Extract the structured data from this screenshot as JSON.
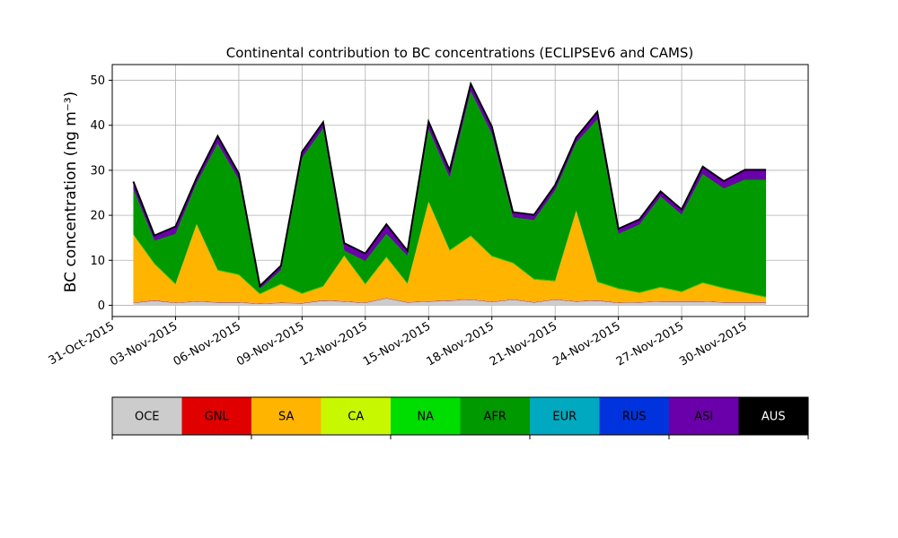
{
  "chart_data": {
    "type": "area",
    "stacked": true,
    "title": "Continental contribution to BC concentrations (ECLIPSEv6 and CAMS)",
    "ylabel": "BC concentration (ng m⁻³)",
    "xlabel": "",
    "x_scale": "time",
    "x_range": [
      "2015-10-31",
      "2015-12-03"
    ],
    "ylim": [
      -2.5,
      53.5
    ],
    "grid": true,
    "x_tick_labels": [
      "31-Oct-2015",
      "03-Nov-2015",
      "06-Nov-2015",
      "09-Nov-2015",
      "12-Nov-2015",
      "15-Nov-2015",
      "18-Nov-2015",
      "21-Nov-2015",
      "24-Nov-2015",
      "27-Nov-2015",
      "30-Nov-2015"
    ],
    "y_tick_labels": [
      "0",
      "10",
      "20",
      "30",
      "40",
      "50"
    ],
    "y_ticks": [
      0,
      10,
      20,
      30,
      40,
      50
    ],
    "x": [
      "2015-11-01",
      "2015-11-02",
      "2015-11-03",
      "2015-11-04",
      "2015-11-05",
      "2015-11-06",
      "2015-11-07",
      "2015-11-08",
      "2015-11-09",
      "2015-11-10",
      "2015-11-11",
      "2015-11-12",
      "2015-11-13",
      "2015-11-14",
      "2015-11-15",
      "2015-11-16",
      "2015-11-17",
      "2015-11-18",
      "2015-11-19",
      "2015-11-20",
      "2015-11-21",
      "2015-11-22",
      "2015-11-23",
      "2015-11-24",
      "2015-11-25",
      "2015-11-26",
      "2015-11-27",
      "2015-11-28",
      "2015-11-29",
      "2015-11-30",
      "2015-12-01"
    ],
    "series": [
      {
        "name": "OCE",
        "color": "#cccccc",
        "values": [
          0.5,
          1.0,
          0.5,
          0.8,
          0.6,
          0.6,
          0.3,
          0.5,
          0.4,
          1.0,
          0.8,
          0.5,
          1.5,
          0.6,
          0.8,
          1.0,
          1.2,
          0.7,
          1.2,
          0.6,
          1.2,
          0.8,
          1.0,
          0.5,
          0.6,
          0.8,
          0.8,
          0.8,
          0.6,
          0.6,
          0.6
        ]
      },
      {
        "name": "GNL",
        "color": "#e00000",
        "values": [
          0.1,
          0.1,
          0.1,
          0.1,
          0.1,
          0.1,
          0.1,
          0.1,
          0.1,
          0.1,
          0.1,
          0.1,
          0.1,
          0.1,
          0.1,
          0.1,
          0.1,
          0.1,
          0.1,
          0.1,
          0.1,
          0.1,
          0.1,
          0.1,
          0.1,
          0.1,
          0.1,
          0.1,
          0.1,
          0.1,
          0.1
        ]
      },
      {
        "name": "SA",
        "color": "#ffb400",
        "values": [
          15,
          8,
          4,
          17,
          7,
          6,
          2,
          4,
          2,
          3,
          10,
          4,
          9,
          4,
          22,
          11,
          14,
          10,
          8,
          5,
          4,
          20,
          4,
          3,
          2,
          3,
          2,
          4,
          3,
          2,
          1
        ]
      },
      {
        "name": "CA",
        "color": "#c8f800",
        "values": [
          0,
          0,
          0,
          0,
          0,
          0,
          0,
          0,
          0,
          0,
          0,
          0,
          0,
          0,
          0,
          0,
          0,
          0,
          0,
          0,
          0,
          0,
          0,
          0,
          0,
          0,
          0,
          0,
          0,
          0,
          0
        ]
      },
      {
        "name": "NA",
        "color": "#00dd00",
        "values": [
          0.2,
          0.2,
          0.2,
          0.2,
          0.2,
          0.2,
          0.2,
          0.2,
          0.2,
          0.2,
          0.2,
          0.2,
          0.2,
          0.2,
          0.2,
          0.2,
          0.2,
          0.2,
          0.2,
          0.2,
          0.2,
          0.2,
          0.2,
          0.2,
          0.2,
          0.2,
          0.2,
          0.2,
          0.2,
          0.2,
          0.2
        ]
      },
      {
        "name": "AFR",
        "color": "#009900",
        "values": [
          10,
          5,
          11,
          9,
          28,
          21,
          1,
          3,
          30,
          35,
          1,
          5,
          5,
          6,
          16,
          16,
          32,
          27,
          10,
          13,
          20,
          15,
          36,
          12,
          15,
          20,
          17,
          24,
          22,
          25,
          26
        ]
      },
      {
        "name": "EUR",
        "color": "#00a9bf",
        "values": [
          0,
          0,
          0,
          0,
          0,
          0,
          0,
          0,
          0,
          0,
          0,
          0,
          0,
          0,
          0,
          0,
          0,
          0,
          0,
          0,
          0,
          0,
          0,
          0,
          0,
          0,
          0,
          0,
          0,
          0,
          0
        ]
      },
      {
        "name": "RUS",
        "color": "#0033dd",
        "values": [
          0,
          0,
          0,
          0,
          0,
          0,
          0,
          0,
          0,
          0,
          0,
          0,
          0,
          0,
          0,
          0,
          0,
          0,
          0,
          0,
          0,
          0,
          0,
          0,
          0,
          0,
          0,
          0,
          0,
          0,
          0
        ]
      },
      {
        "name": "ASI",
        "color": "#6a00aa",
        "values": [
          1.5,
          1.0,
          1.5,
          1.0,
          1.5,
          1.2,
          0.5,
          0.8,
          1.2,
          1.2,
          1.5,
          1.5,
          2.0,
          1.0,
          1.5,
          1.5,
          1.5,
          1.5,
          1.0,
          1.0,
          1.0,
          1.0,
          1.5,
          1.0,
          1.0,
          1.0,
          1.0,
          1.5,
          1.5,
          2.0,
          2.0
        ]
      },
      {
        "name": "AUS",
        "color": "#000000",
        "values": [
          0.2,
          0.2,
          0.2,
          0.2,
          0.2,
          0.2,
          0.2,
          0.2,
          0.2,
          0.2,
          0.2,
          0.2,
          0.2,
          0.2,
          0.2,
          0.2,
          0.2,
          0.2,
          0.2,
          0.2,
          0.2,
          0.2,
          0.2,
          0.2,
          0.2,
          0.2,
          0.2,
          0.2,
          0.2,
          0.2,
          0.2
        ]
      }
    ],
    "colorbar_labels": [
      "OCE",
      "GNL",
      "SA",
      "CA",
      "NA",
      "AFR",
      "EUR",
      "RUS",
      "ASI",
      "AUS"
    ]
  }
}
